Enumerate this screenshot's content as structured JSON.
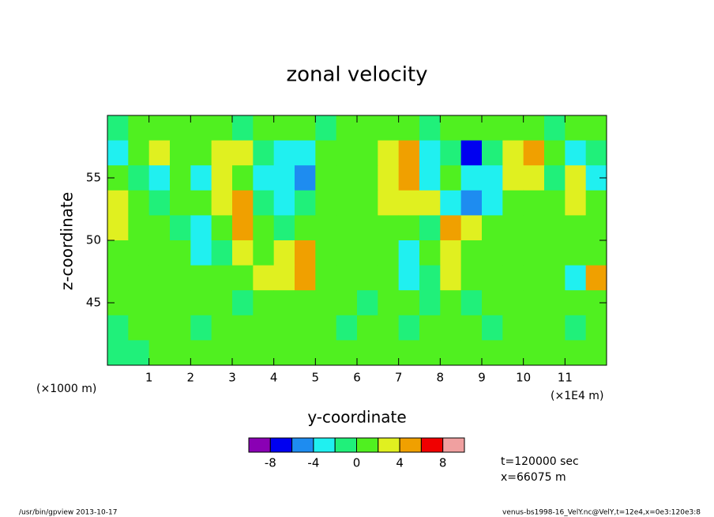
{
  "chart_data": {
    "type": "contour",
    "title": "zonal velocity",
    "xlabel": "y-coordinate",
    "ylabel": "z-coordinate",
    "x_unit": "(×1000 m)",
    "x_scale_note": "(×1E4 m)",
    "xlim": [
      0,
      12
    ],
    "ylim": [
      40,
      60
    ],
    "xticks": [
      1,
      2,
      3,
      4,
      5,
      6,
      7,
      8,
      9,
      10,
      11
    ],
    "yticks": [
      45,
      50,
      55
    ],
    "z": [
      [
        -1,
        1,
        1,
        1,
        1,
        1,
        -1,
        1,
        1,
        1,
        -1,
        1,
        1,
        1,
        1,
        -1,
        1,
        1,
        1,
        1,
        1,
        -1,
        1,
        1
      ],
      [
        -3,
        1,
        3,
        1,
        1,
        3,
        3,
        -1,
        -3,
        -3,
        1,
        1,
        1,
        3,
        5,
        -3,
        -1,
        -7,
        -1,
        3,
        5,
        1,
        -3,
        -1
      ],
      [
        1,
        -1,
        -3,
        1,
        -3,
        3,
        1,
        -3,
        -3,
        -5,
        1,
        1,
        1,
        3,
        5,
        -3,
        1,
        -3,
        -3,
        3,
        3,
        -1,
        3,
        -3
      ],
      [
        3,
        1,
        -1,
        1,
        1,
        3,
        5,
        -1,
        -3,
        -1,
        1,
        1,
        1,
        3,
        3,
        3,
        -3,
        -5,
        -3,
        1,
        1,
        1,
        3,
        1
      ],
      [
        3,
        1,
        1,
        -1,
        -3,
        1,
        5,
        1,
        -1,
        1,
        1,
        1,
        1,
        1,
        1,
        -1,
        5,
        3,
        1,
        1,
        1,
        1,
        1,
        1
      ],
      [
        1,
        1,
        1,
        1,
        -3,
        -1,
        3,
        1,
        3,
        5,
        1,
        1,
        1,
        1,
        -3,
        1,
        3,
        1,
        1,
        1,
        1,
        1,
        1,
        1
      ],
      [
        1,
        1,
        1,
        1,
        1,
        1,
        1,
        3,
        3,
        5,
        1,
        1,
        1,
        1,
        -3,
        -1,
        3,
        1,
        1,
        1,
        1,
        1,
        -3,
        5
      ],
      [
        1,
        1,
        1,
        1,
        1,
        1,
        -1,
        1,
        1,
        1,
        1,
        1,
        -1,
        1,
        1,
        -1,
        1,
        -1,
        1,
        1,
        1,
        1,
        1,
        1
      ],
      [
        -1,
        1,
        1,
        1,
        -1,
        1,
        1,
        1,
        1,
        1,
        1,
        -1,
        1,
        1,
        -1,
        1,
        1,
        1,
        -1,
        1,
        1,
        1,
        -1,
        1
      ],
      [
        -1,
        -1,
        1,
        1,
        1,
        1,
        1,
        1,
        1,
        1,
        1,
        1,
        1,
        1,
        1,
        1,
        1,
        1,
        1,
        1,
        1,
        1,
        1,
        1
      ]
    ],
    "colorbar": {
      "levels": [
        -10,
        -8,
        -6,
        -4,
        -2,
        0,
        2,
        4,
        6,
        8,
        10
      ],
      "colors": [
        "#8a00b4",
        "#0000f0",
        "#1e8cf0",
        "#20f0f0",
        "#20f07a",
        "#50f020",
        "#e0f020",
        "#f0a000",
        "#f00000",
        "#f0a0a0"
      ],
      "ticks": [
        -8,
        -4,
        0,
        4,
        8
      ]
    },
    "annotations": [
      "t=120000 sec",
      "x=66075 m"
    ],
    "footer_left": "/usr/bin/gpview  2013-10-17",
    "footer_right": "venus-bs1998-16_VelY.nc@VelY,t=12e4,x=0e3:120e3:8"
  }
}
